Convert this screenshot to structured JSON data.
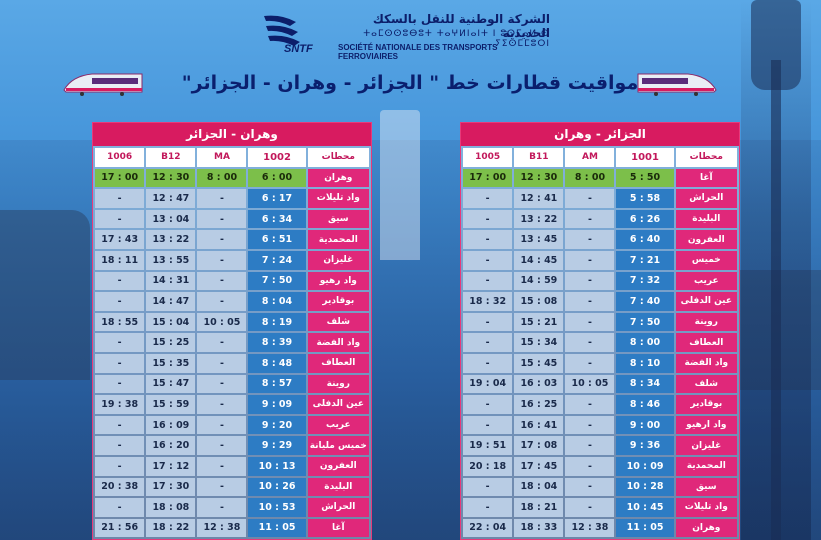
{
  "header": {
    "company_ar": "الشركة الوطنية للنقل بالسكك الحديدية",
    "company_tifinagh": "ⵜⴰⵎⵙⵙⵓⴱⵓⵜ ⵜⴰⵖⵍⵏⴰⵏⵜ ⵏ ⵓⵙⵎⴰⵍ ⵙ ⵢⵉⵙⵎⵎⵓⵔⵏ",
    "company_fr": "SOCIÉTÉ NATIONALE DES TRANSPORTS FERROVIAIRES",
    "logo_text": "SNTF",
    "title": "مواقيت قطارات خط \" الجزائر - وهران - الجزائر\""
  },
  "colors": {
    "station_bg": "#e0287a",
    "main_train_bg": "#2d7cc4",
    "other_train_bg": "#b8cce4",
    "first_row_bg": "#7cbf4a",
    "title_bg": "#d81b60"
  },
  "left_table": {
    "title": "وهران - الجزائر",
    "headers": [
      "محطات",
      "1002",
      "MA",
      "B12",
      "1006"
    ],
    "rows": [
      [
        "وهران",
        "6 : 00",
        "8 : 00",
        "12 : 30",
        "17 : 00"
      ],
      [
        "واد تليلات",
        "6 : 17",
        "-",
        "12 : 47",
        "-"
      ],
      [
        "سيق",
        "6 : 34",
        "-",
        "13 : 04",
        "-"
      ],
      [
        "المحمدية",
        "6 : 51",
        "-",
        "13 : 22",
        "17 : 43"
      ],
      [
        "غليزان",
        "7 : 24",
        "-",
        "13 : 55",
        "18 : 11"
      ],
      [
        "واد رهيو",
        "7 : 50",
        "-",
        "14 : 31",
        "-"
      ],
      [
        "بوقادير",
        "8 : 04",
        "-",
        "14 : 47",
        "-"
      ],
      [
        "شلف",
        "8 : 19",
        "10 : 05",
        "15 : 04",
        "18 : 55"
      ],
      [
        "واد الفضة",
        "8 : 39",
        "-",
        "15 : 25",
        "-"
      ],
      [
        "العطاف",
        "8 : 48",
        "-",
        "15 : 35",
        "-"
      ],
      [
        "روينة",
        "8 : 57",
        "-",
        "15 : 47",
        "-"
      ],
      [
        "عين الدفلى",
        "9 : 09",
        "-",
        "15 : 59",
        "19 : 38"
      ],
      [
        "عريب",
        "9 : 20",
        "-",
        "16 : 09",
        "-"
      ],
      [
        "خميس مليانة",
        "9 : 29",
        "-",
        "16 : 20",
        "-"
      ],
      [
        "العفرون",
        "10 : 13",
        "-",
        "17 : 12",
        "-"
      ],
      [
        "البليدة",
        "10 : 26",
        "-",
        "17 : 30",
        "20 : 38"
      ],
      [
        "الحراش",
        "10 : 53",
        "-",
        "18 : 08",
        "-"
      ],
      [
        "آغا",
        "11 : 05",
        "12 : 38",
        "18 : 22",
        "21 : 56"
      ]
    ]
  },
  "right_table": {
    "title": "الجزائر - وهران",
    "headers": [
      "محطات",
      "1001",
      "AM",
      "B11",
      "1005"
    ],
    "rows": [
      [
        "آغا",
        "5 : 50",
        "8 : 00",
        "12 : 30",
        "17 : 00"
      ],
      [
        "الحراش",
        "5 : 58",
        "-",
        "12 : 41",
        "-"
      ],
      [
        "البليدة",
        "6 : 26",
        "-",
        "13 : 22",
        "-"
      ],
      [
        "العفرون",
        "6 : 40",
        "-",
        "13 : 45",
        "-"
      ],
      [
        "خميس",
        "7 : 21",
        "-",
        "14 : 45",
        "-"
      ],
      [
        "عريب",
        "7 : 32",
        "-",
        "14 : 59",
        "-"
      ],
      [
        "عين الدفلى",
        "7 : 40",
        "-",
        "15 : 08",
        "18 : 32"
      ],
      [
        "روينة",
        "7 : 50",
        "-",
        "15 : 21",
        "-"
      ],
      [
        "العطاف",
        "8 : 00",
        "-",
        "15 : 34",
        "-"
      ],
      [
        "واد الفضة",
        "8 : 10",
        "-",
        "15 : 45",
        "-"
      ],
      [
        "شلف",
        "8 : 34",
        "10 : 05",
        "16 : 03",
        "19 : 04"
      ],
      [
        "بوقادير",
        "8 : 46",
        "-",
        "16 : 25",
        "-"
      ],
      [
        "واد ارهيو",
        "9 : 00",
        "-",
        "16 : 41",
        "-"
      ],
      [
        "غليزان",
        "9 : 36",
        "-",
        "17 : 08",
        "19 : 51"
      ],
      [
        "المحمدية",
        "10 : 09",
        "-",
        "17 : 45",
        "20 : 18"
      ],
      [
        "سيق",
        "10 : 28",
        "-",
        "18 : 04",
        "-"
      ],
      [
        "واد تليلات",
        "10 : 45",
        "-",
        "18 : 21",
        "-"
      ],
      [
        "وهران",
        "11 : 05",
        "12 : 38",
        "18 : 33",
        "22 : 04"
      ]
    ]
  }
}
